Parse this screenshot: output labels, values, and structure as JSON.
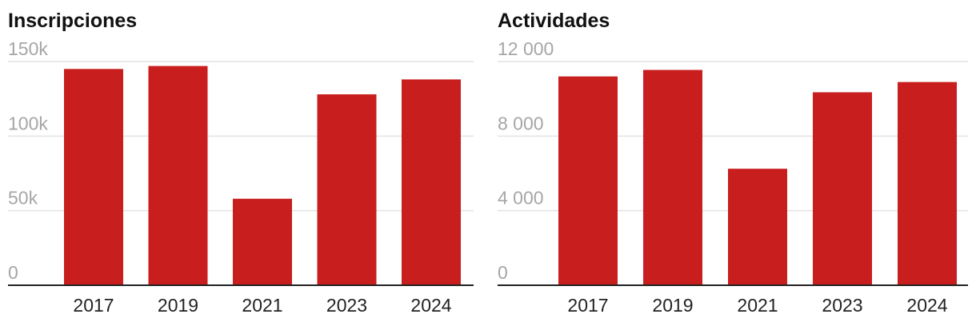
{
  "chart_data": [
    {
      "type": "bar",
      "title": "Inscripciones",
      "categories": [
        "2017",
        "2019",
        "2021",
        "2023",
        "2024"
      ],
      "values": [
        145000,
        147000,
        58000,
        128000,
        138000
      ],
      "ylim": [
        0,
        150000
      ],
      "yticks": [
        0,
        50000,
        100000,
        150000
      ],
      "ytick_labels": [
        "0",
        "50k",
        "100k",
        "150k"
      ],
      "xlabel": "",
      "ylabel": "",
      "grid": true,
      "color": "#c81e1e"
    },
    {
      "type": "bar",
      "title": "Actividades",
      "categories": [
        "2017",
        "2019",
        "2021",
        "2023",
        "2024"
      ],
      "values": [
        11200,
        11550,
        6250,
        10350,
        10900
      ],
      "ylim": [
        0,
        12000
      ],
      "yticks": [
        0,
        4000,
        8000,
        12000
      ],
      "ytick_labels": [
        "0",
        "4 000",
        "8 000",
        "12 000"
      ],
      "xlabel": "",
      "ylabel": "",
      "grid": true,
      "color": "#c81e1e"
    }
  ]
}
